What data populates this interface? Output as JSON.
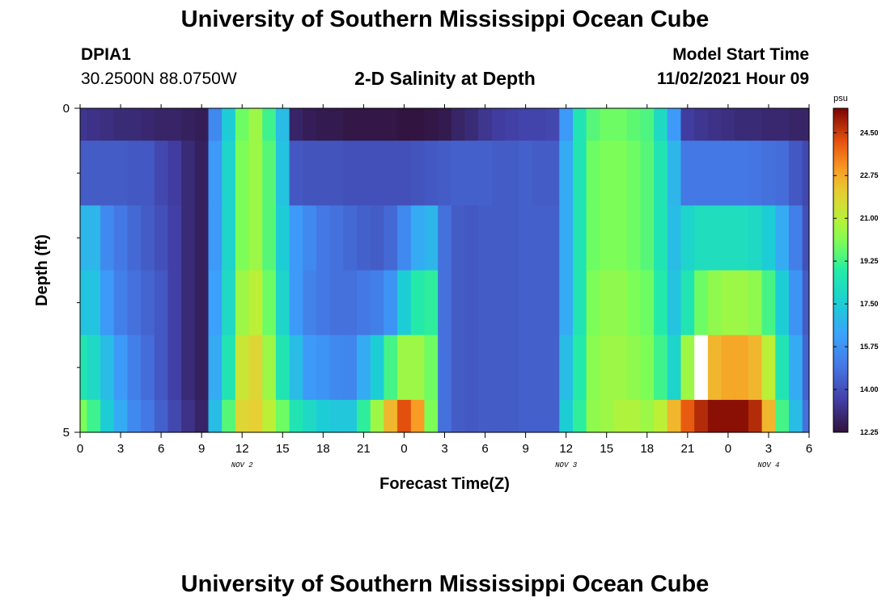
{
  "header": {
    "title": "University of Southern Mississippi Ocean Cube",
    "station_id": "DPIA1",
    "coordinates": "30.2500N  88.0750W",
    "chart_title": "2-D Salinity at Depth",
    "model_start_label": "Model Start Time",
    "model_start_value": "11/02/2021 Hour 09"
  },
  "footer": {
    "title": "University of Southern Mississippi Ocean Cube"
  },
  "chart_data": {
    "type": "heatmap",
    "title": "2-D Salinity at Depth",
    "xlabel": "Forecast Time(Z)",
    "ylabel": "Depth (ft)",
    "x_tick_labels": [
      "0",
      "3",
      "6",
      "9",
      "12",
      "15",
      "18",
      "21",
      "0",
      "3",
      "6",
      "9",
      "12",
      "15",
      "18",
      "21",
      "0",
      "3",
      "6"
    ],
    "x_date_labels": [
      {
        "label": "NOV 2",
        "at_tick": 4
      },
      {
        "label": "NOV 3",
        "at_tick": 12
      },
      {
        "label": "NOV 4",
        "at_tick": 17
      }
    ],
    "y_tick_labels": [
      {
        "label": "0",
        "value": 0
      },
      {
        "label": "5",
        "value": 5
      }
    ],
    "y_minor_ticks": [
      1,
      2,
      3,
      4
    ],
    "ylim": [
      0,
      5
    ],
    "x_hours_range": [
      0,
      54
    ],
    "colorbar": {
      "unit": "psu",
      "min": 12.25,
      "max": 25.5,
      "labels": [
        "24.50",
        "22.75",
        "21.00",
        "19.25",
        "17.50",
        "15.75",
        "14.00",
        "12.25"
      ],
      "label_values": [
        24.5,
        22.75,
        21.0,
        19.25,
        17.5,
        15.75,
        14.0,
        12.25
      ],
      "colormap": "turbo"
    },
    "missing_cells": [
      {
        "hour": 46,
        "layer": 4
      }
    ],
    "layers": [
      {
        "depth_range": [
          0,
          0.5
        ],
        "values": [
          13.3,
          13.2,
          13.1,
          13.0,
          13.0,
          12.9,
          12.8,
          12.8,
          12.7,
          12.6,
          15.5,
          17.5,
          19.8,
          20.5,
          19.2,
          17.0,
          12.8,
          12.6,
          12.5,
          12.5,
          12.4,
          12.4,
          12.4,
          12.4,
          12.3,
          12.3,
          12.4,
          12.5,
          12.8,
          13.0,
          13.3,
          13.5,
          13.6,
          13.7,
          13.7,
          13.8,
          16.0,
          18.5,
          19.5,
          19.8,
          19.8,
          19.6,
          19.4,
          18.0,
          16.0,
          13.5,
          13.3,
          13.2,
          13.1,
          13.0,
          13.0,
          12.9,
          12.9,
          12.8,
          12.8
        ]
      },
      {
        "depth_range": [
          0.5,
          1.5
        ],
        "values": [
          14.3,
          14.3,
          14.3,
          14.3,
          14.2,
          14.2,
          13.8,
          13.5,
          13.0,
          12.7,
          16.0,
          17.8,
          20.0,
          20.5,
          19.5,
          17.2,
          14.2,
          14.1,
          14.1,
          14.1,
          14.0,
          14.0,
          14.0,
          14.0,
          14.0,
          14.1,
          14.2,
          14.3,
          14.4,
          14.4,
          14.4,
          14.3,
          14.3,
          14.4,
          14.3,
          14.3,
          16.5,
          18.5,
          19.8,
          20.0,
          20.0,
          19.8,
          19.5,
          18.5,
          16.8,
          15.0,
          15.0,
          15.0,
          15.0,
          15.0,
          14.9,
          14.8,
          14.7,
          14.2,
          13.8
        ]
      },
      {
        "depth_range": [
          1.5,
          2.5
        ],
        "values": [
          16.8,
          16.8,
          15.5,
          15.0,
          14.6,
          14.3,
          14.0,
          13.6,
          13.0,
          12.7,
          16.0,
          17.8,
          20.0,
          20.5,
          19.5,
          17.5,
          16.0,
          15.5,
          15.0,
          14.8,
          14.6,
          14.4,
          14.3,
          14.6,
          15.5,
          16.5,
          16.8,
          14.8,
          14.3,
          14.2,
          14.3,
          14.3,
          14.3,
          14.4,
          14.4,
          14.4,
          16.5,
          18.5,
          19.8,
          20.0,
          20.0,
          19.8,
          19.5,
          18.5,
          17.0,
          17.8,
          18.2,
          18.2,
          18.2,
          18.2,
          18.0,
          17.5,
          16.5,
          15.2,
          14.0
        ]
      },
      {
        "depth_range": [
          2.5,
          3.5
        ],
        "values": [
          17.2,
          17.2,
          16.0,
          15.2,
          14.8,
          14.5,
          14.2,
          13.6,
          13.0,
          12.7,
          16.2,
          18.0,
          20.5,
          21.0,
          19.8,
          17.8,
          16.0,
          15.3,
          15.0,
          14.8,
          14.8,
          15.0,
          15.2,
          15.8,
          17.5,
          18.8,
          19.0,
          14.8,
          14.3,
          14.2,
          14.3,
          14.3,
          14.3,
          14.4,
          14.4,
          14.4,
          16.5,
          18.5,
          20.0,
          20.3,
          20.3,
          20.0,
          19.8,
          18.8,
          17.2,
          18.5,
          19.8,
          20.3,
          20.5,
          20.5,
          20.3,
          19.3,
          17.5,
          15.8,
          14.3
        ]
      },
      {
        "depth_range": [
          3.5,
          4.5
        ],
        "values": [
          18.5,
          18.0,
          17.0,
          16.0,
          15.2,
          14.7,
          14.2,
          13.6,
          13.0,
          12.7,
          16.5,
          18.5,
          21.3,
          21.8,
          20.5,
          18.5,
          17.0,
          16.0,
          15.8,
          15.5,
          15.4,
          16.5,
          17.5,
          19.3,
          20.5,
          20.5,
          19.8,
          14.8,
          14.3,
          14.2,
          14.3,
          14.3,
          14.3,
          14.4,
          14.4,
          14.4,
          17.0,
          18.8,
          20.2,
          20.5,
          20.5,
          20.3,
          20.0,
          19.2,
          17.8,
          20.5,
          22.0,
          22.5,
          22.8,
          22.8,
          22.5,
          21.0,
          18.5,
          16.5,
          14.5
        ]
      },
      {
        "depth_range": [
          4.5,
          5.0
        ],
        "values": [
          20.0,
          19.2,
          17.5,
          16.5,
          15.5,
          15.0,
          14.4,
          13.8,
          13.2,
          12.8,
          17.0,
          19.5,
          21.8,
          22.0,
          21.0,
          19.8,
          18.5,
          18.0,
          17.5,
          17.3,
          17.3,
          19.0,
          20.5,
          22.5,
          24.2,
          23.0,
          20.0,
          14.8,
          14.3,
          14.2,
          14.3,
          14.3,
          14.3,
          14.4,
          14.4,
          14.4,
          17.5,
          19.0,
          20.3,
          20.5,
          20.8,
          20.8,
          20.5,
          21.0,
          22.5,
          24.0,
          24.8,
          25.3,
          25.3,
          25.3,
          24.8,
          22.5,
          19.3,
          17.0,
          14.8
        ]
      }
    ]
  }
}
